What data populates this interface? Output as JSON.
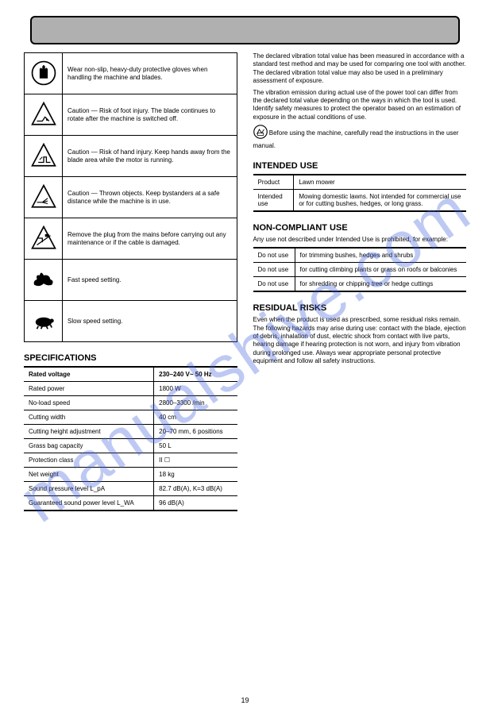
{
  "watermark": "manualshive.com",
  "page_number": "19",
  "icon_rows": [
    {
      "key": "gloves",
      "desc": "Wear non-slip, heavy-duty protective gloves when handling the machine and blades."
    },
    {
      "key": "foot",
      "desc": "Caution — Risk of foot injury. The blade continues to rotate after the machine is switched off."
    },
    {
      "key": "hand",
      "desc": "Caution — Risk of hand injury. Keep hands away from the blade area while the motor is running."
    },
    {
      "key": "eject",
      "desc": "Caution — Thrown objects. Keep bystanders at a safe distance while the machine is in use."
    },
    {
      "key": "plug",
      "desc": "Remove the plug from the mains before carrying out any maintenance or if the cable is damaged."
    },
    {
      "key": "rabbit",
      "desc": "Fast speed setting."
    },
    {
      "key": "turtle",
      "desc": "Slow speed setting."
    }
  ],
  "left": {
    "spec_title": "SPECIFICATIONS",
    "spec_rows": [
      [
        "Rated voltage",
        "230–240 V~ 50 Hz"
      ],
      [
        "Rated power",
        "1800 W"
      ],
      [
        "No-load speed",
        "2800–3300 /min"
      ],
      [
        "Cutting width",
        "40 cm"
      ],
      [
        "Cutting height adjustment",
        "20–70 mm, 6 positions"
      ],
      [
        "Grass bag capacity",
        "50 L"
      ],
      [
        "Protection class",
        "II  ☐"
      ],
      [
        "Net weight",
        "18 kg"
      ],
      [
        "Sound pressure level L_pA",
        "82.7 dB(A), K=3 dB(A)"
      ],
      [
        "Guaranteed sound power level L_WA",
        "96 dB(A)"
      ]
    ]
  },
  "right": {
    "vibration_intro": "The declared vibration total value has been measured in accordance with a standard test method and may be used for comparing one tool with another. The declared vibration total value may also be used in a preliminary assessment of exposure.",
    "vibration_warning": "The vibration emission during actual use of the power tool can differ from the declared total value depending on the ways in which the tool is used. Identify safety measures to protect the operator based on an estimation of exposure in the actual conditions of use.",
    "read_manual": "Before using the machine, carefully read the instructions in the user manual.",
    "intended_title": "INTENDED USE",
    "intended_rows": [
      [
        "Product",
        "Lawn mower"
      ],
      [
        "Intended use",
        "Mowing domestic lawns. Not intended for commercial use or for cutting bushes, hedges, or long grass."
      ]
    ],
    "noncomp_title": "NON-COMPLIANT USE",
    "noncomp_intro": "Any use not described under Intended Use is prohibited, for example:",
    "noncomp_rows": [
      [
        "Do not use",
        "for trimming bushes, hedges and shrubs"
      ],
      [
        "Do not use",
        "for cutting climbing plants or grass on roofs or balconies"
      ],
      [
        "Do not use",
        "for shredding or chipping tree or hedge cuttings"
      ]
    ],
    "residual_title": "RESIDUAL RISKS",
    "residual_text": "Even when the product is used as prescribed, some residual risks remain. The following hazards may arise during use: contact with the blade, ejection of debris, inhalation of dust, electric shock from contact with live parts, hearing damage if hearing protection is not worn, and injury from vibration during prolonged use. Always wear appropriate personal protective equipment and follow all safety instructions."
  }
}
